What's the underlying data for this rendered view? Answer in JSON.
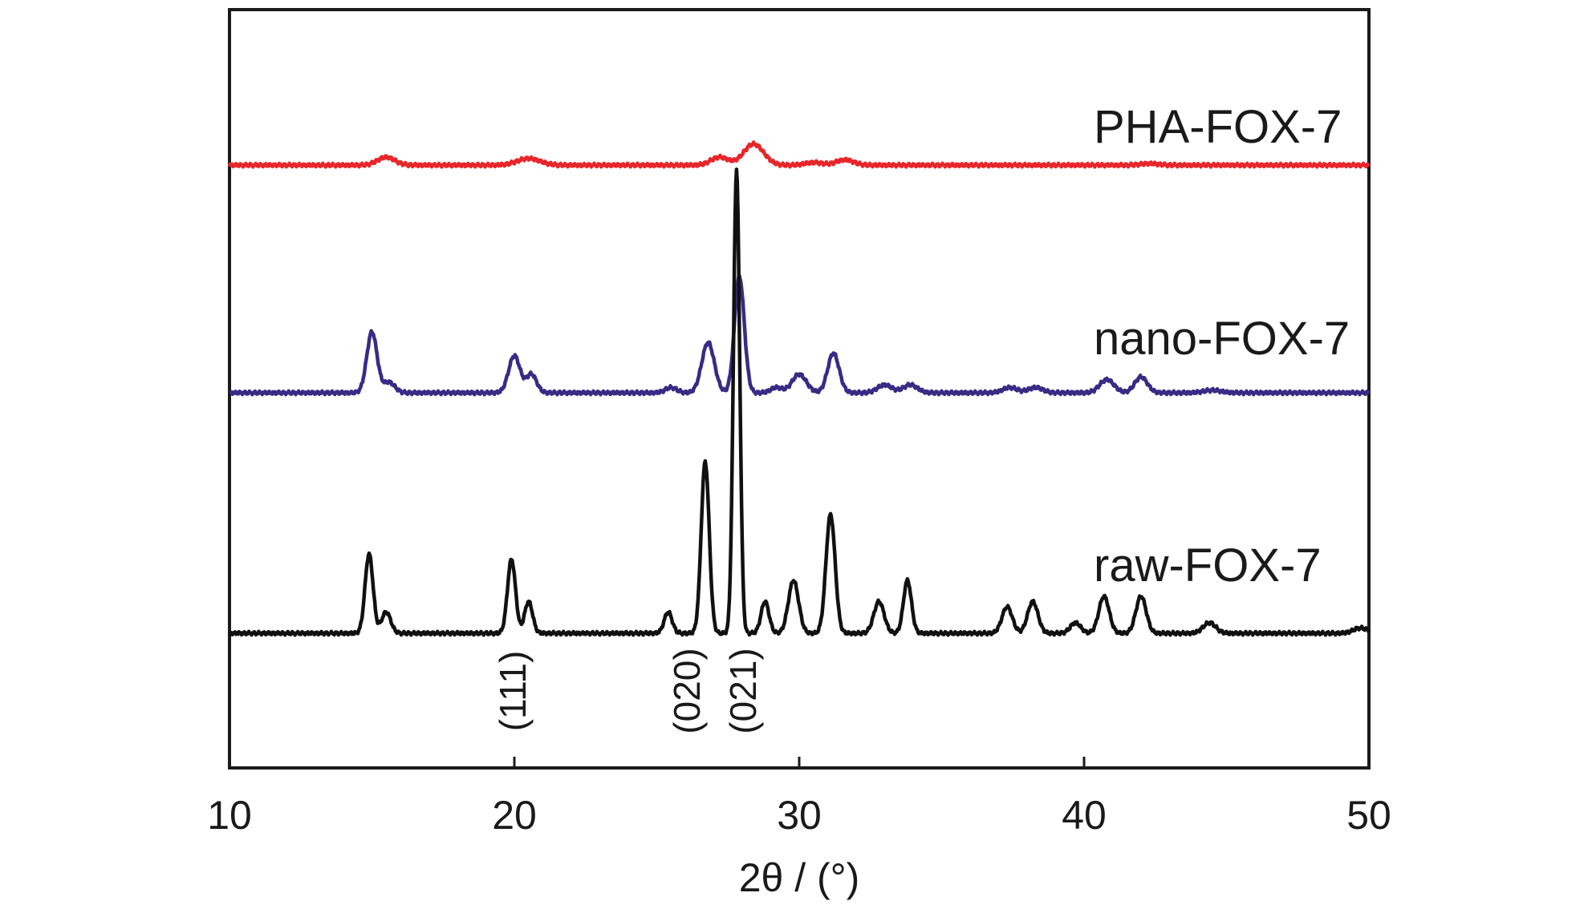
{
  "chart_data": {
    "type": "line",
    "title": "",
    "xlabel": "2θ / (°)",
    "ylabel": "",
    "xlim": [
      10,
      50
    ],
    "xticks": [
      10,
      20,
      30,
      40,
      50
    ],
    "y_ticks_shown": false,
    "grid": false,
    "legend": "inline labels at right of each trace",
    "series": [
      {
        "name": "PHA-FOX-7",
        "color": "#e8262a",
        "baseline": 0.0,
        "peaks": [
          [
            15.5,
            0.03,
            0.3
          ],
          [
            20.5,
            0.025,
            0.4
          ],
          [
            27.2,
            0.03,
            0.3
          ],
          [
            28.4,
            0.08,
            0.35
          ],
          [
            30.5,
            0.01,
            0.3
          ],
          [
            31.6,
            0.02,
            0.3
          ],
          [
            42.3,
            0.006,
            0.3
          ]
        ]
      },
      {
        "name": "nano-FOX-7",
        "color": "#3a2a85",
        "baseline": 0.0,
        "peaks": [
          [
            15.0,
            0.23,
            0.18
          ],
          [
            15.6,
            0.04,
            0.2
          ],
          [
            20.0,
            0.14,
            0.2
          ],
          [
            20.6,
            0.07,
            0.18
          ],
          [
            25.5,
            0.02,
            0.2
          ],
          [
            26.8,
            0.19,
            0.22
          ],
          [
            27.9,
            0.44,
            0.17
          ],
          [
            29.2,
            0.02,
            0.2
          ],
          [
            30.0,
            0.07,
            0.25
          ],
          [
            31.2,
            0.15,
            0.2
          ],
          [
            33.0,
            0.03,
            0.25
          ],
          [
            33.9,
            0.03,
            0.25
          ],
          [
            37.4,
            0.02,
            0.25
          ],
          [
            38.3,
            0.02,
            0.25
          ],
          [
            40.8,
            0.05,
            0.25
          ],
          [
            42.0,
            0.06,
            0.22
          ],
          [
            44.5,
            0.01,
            0.3
          ]
        ]
      },
      {
        "name": "raw-FOX-7",
        "color": "#111111",
        "baseline": 0.0,
        "peaks": [
          [
            14.9,
            0.3,
            0.14
          ],
          [
            15.5,
            0.08,
            0.16
          ],
          [
            19.9,
            0.28,
            0.14
          ],
          [
            20.5,
            0.12,
            0.14
          ],
          [
            25.4,
            0.08,
            0.14
          ],
          [
            26.7,
            0.65,
            0.14
          ],
          [
            27.8,
            1.75,
            0.11
          ],
          [
            28.8,
            0.12,
            0.14
          ],
          [
            29.8,
            0.2,
            0.18
          ],
          [
            31.1,
            0.45,
            0.16
          ],
          [
            32.8,
            0.12,
            0.18
          ],
          [
            33.8,
            0.2,
            0.14
          ],
          [
            37.3,
            0.1,
            0.18
          ],
          [
            38.2,
            0.12,
            0.18
          ],
          [
            39.7,
            0.04,
            0.18
          ],
          [
            40.7,
            0.14,
            0.18
          ],
          [
            42.0,
            0.14,
            0.18
          ],
          [
            44.4,
            0.04,
            0.22
          ],
          [
            49.7,
            0.02,
            0.25
          ]
        ]
      }
    ],
    "annotations": [
      {
        "text": "(111)",
        "x": 20.0
      },
      {
        "text": "(020)",
        "x": 26.7
      },
      {
        "text": "(021)",
        "x": 27.9
      }
    ]
  }
}
